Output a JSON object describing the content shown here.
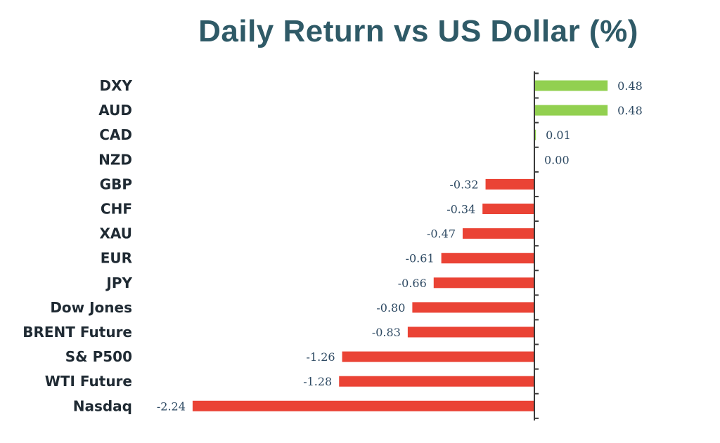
{
  "title": "Daily Return vs US Dollar (%)",
  "colors": {
    "positive": "#92d050",
    "negative": "#ea4335",
    "axis": "#3a3a3a"
  },
  "chart_data": {
    "type": "bar",
    "orientation": "horizontal",
    "title": "Daily Return vs US Dollar (%)",
    "categories": [
      "DXY",
      "AUD",
      "CAD",
      "NZD",
      "GBP",
      "CHF",
      "XAU",
      "EUR",
      "JPY",
      "Dow Jones",
      "BRENT Future",
      "S& P500",
      "WTI Future",
      "Nasdaq"
    ],
    "values": [
      0.48,
      0.48,
      0.01,
      0.0,
      -0.32,
      -0.34,
      -0.47,
      -0.61,
      -0.66,
      -0.8,
      -0.83,
      -1.26,
      -1.28,
      -2.24
    ],
    "value_labels": [
      "0.48",
      "0.48",
      "0.01",
      "0.00",
      "-0.32",
      "-0.34",
      "-0.47",
      "-0.61",
      "-0.66",
      "-0.80",
      "-0.83",
      "-1.26",
      "-1.28",
      "-2.24"
    ],
    "xlabel": "",
    "ylabel": "",
    "grid": false,
    "legend": "none"
  }
}
